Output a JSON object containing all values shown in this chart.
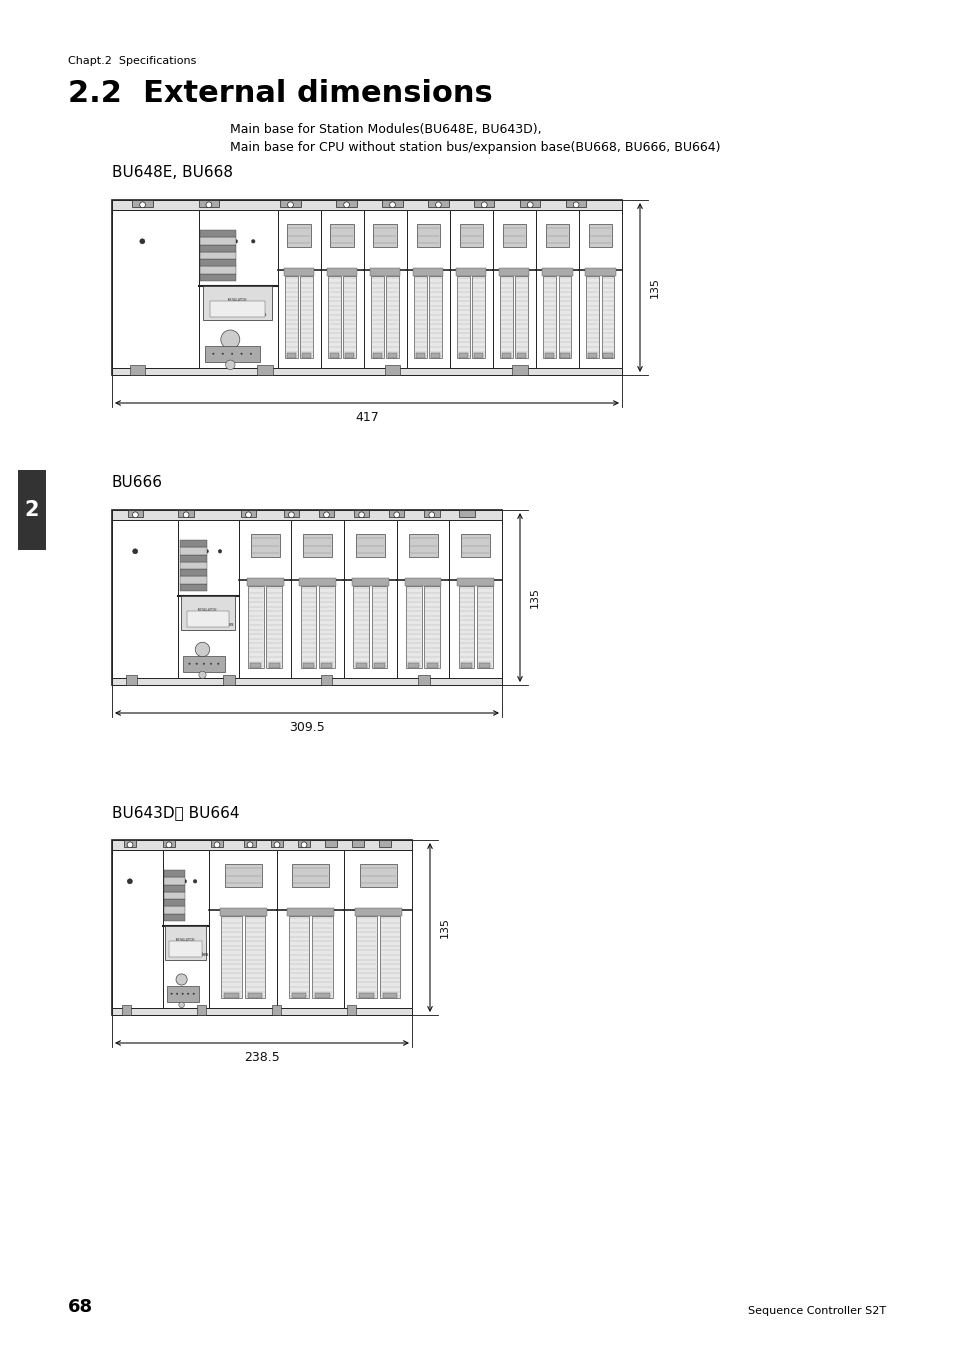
{
  "page_title": "Chapt.2  Specifications",
  "section_title": "2.2  External dimensions",
  "subtitle1": "Main base for Station Modules(BU648E, BU643D),",
  "subtitle2": "Main base for CPU without station bus/expansion base(BU668, BU666, BU664)",
  "diagram1_label": "BU648E, BU668",
  "diagram2_label": "BU666",
  "diagram3_label": "BU643D， BU664",
  "dim1_width": "417",
  "dim2_width": "309.5",
  "dim3_width": "238.5",
  "dim_height": "135",
  "page_number": "68",
  "footer": "Sequence Controller S2T",
  "sidebar_number": "2",
  "bg_color": "#ffffff"
}
